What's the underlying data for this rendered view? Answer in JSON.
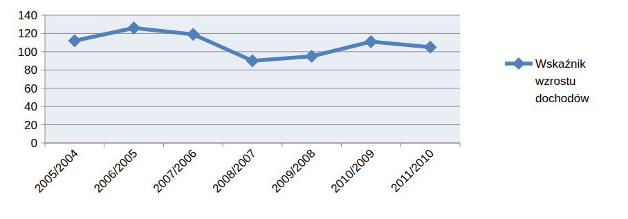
{
  "chart_data": {
    "type": "line",
    "categories": [
      "2005/2004",
      "2006/2005",
      "2007/2006",
      "2008/2007",
      "2009/2008",
      "2010/2009",
      "2011/2010"
    ],
    "series": [
      {
        "name": "Wskaźnik wzrostu dochodów",
        "color": "#4f81bd",
        "marker": "diamond",
        "values": [
          112,
          126,
          119,
          90,
          95,
          111,
          105
        ]
      }
    ],
    "ylim": [
      0,
      140
    ],
    "yticks": [
      0,
      20,
      40,
      60,
      80,
      100,
      120,
      140
    ],
    "grid": true,
    "legend": "right"
  }
}
